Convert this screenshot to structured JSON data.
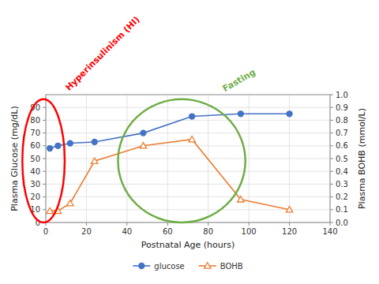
{
  "chart_data": {
    "type": "line",
    "x": [
      2,
      6,
      12,
      24,
      48,
      72,
      96,
      120
    ],
    "xlabel": "Postnatal Age (hours)",
    "ylabel": "Plasma Glucose (mg/dL)",
    "y2label": "Plasma BOHB (mmol/L)",
    "xlim": [
      0,
      140
    ],
    "xticks": [
      0,
      20,
      40,
      60,
      80,
      100,
      120,
      140
    ],
    "ylim": [
      0,
      100
    ],
    "yticks": [
      0,
      10,
      20,
      30,
      40,
      50,
      60,
      70,
      80,
      90
    ],
    "y2lim": [
      0,
      1.0
    ],
    "y2ticks": [
      {
        "value": 0,
        "label": "0.0"
      },
      0.1,
      0.2,
      0.3,
      0.4,
      0.5,
      0.6,
      0.7,
      0.8,
      0.9,
      {
        "value": 1.0,
        "label": "1.0"
      }
    ],
    "series": [
      {
        "name": "glucose",
        "color": "#4472C4",
        "marker": "circle",
        "values": [
          58,
          60,
          62,
          63,
          70,
          83,
          85,
          85
        ]
      },
      {
        "name": "BOHB",
        "color": "#ED7D31",
        "marker": "triangle-open",
        "axis": "y2",
        "values": [
          0.09,
          0.09,
          0.15,
          0.48,
          0.6,
          0.65,
          0.18,
          0.1
        ]
      }
    ],
    "grid": true,
    "legend": "bottom",
    "annotations": [
      {
        "text": "Hyperinsulinism (HI)",
        "color": "#FF0000"
      },
      {
        "text": "Fasting",
        "color": "#70AD47"
      }
    ]
  }
}
